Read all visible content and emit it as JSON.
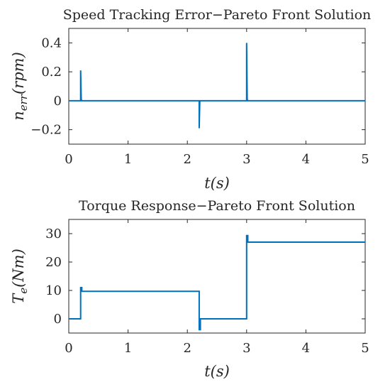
{
  "colors": {
    "series": "#0072BD",
    "axes": "#262626",
    "background": "#ffffff"
  },
  "chart_data": [
    {
      "type": "line",
      "title": "Speed Tracking Error−Pareto Front Solution",
      "xlabel": "t(s)",
      "ylabel": "n_err(rpm)",
      "ylabel_main": "n",
      "ylabel_sub": "err",
      "ylabel_rest": "(rpm)",
      "xlim": [
        0,
        5
      ],
      "ylim": [
        -0.3,
        0.5
      ],
      "xticks": [
        0,
        1,
        2,
        3,
        4,
        5
      ],
      "xtick_labels": [
        "0",
        "1",
        "2",
        "3",
        "4",
        "5"
      ],
      "yticks": [
        -0.2,
        0,
        0.2,
        0.4
      ],
      "ytick_labels": [
        "−0.2",
        "0",
        "0.2",
        "0.4"
      ],
      "grid": false,
      "series": [
        {
          "x": [
            0,
            0.2,
            0.2,
            0.21,
            0.22,
            0.23,
            2.2,
            2.2,
            2.21,
            2.22,
            3.0,
            3.0,
            3.01,
            3.02,
            5.0
          ],
          "y": [
            0,
            0,
            0.21,
            0.01,
            0,
            0,
            0,
            -0.19,
            -0.005,
            0,
            0,
            0.4,
            0.01,
            0,
            0
          ]
        }
      ]
    },
    {
      "type": "line",
      "title": "Torque Response−Pareto Front Solution",
      "xlabel": "t(s)",
      "ylabel": "T_e(Nm)",
      "ylabel_main": "T",
      "ylabel_sub": "e",
      "ylabel_rest": "(Nm)",
      "xlim": [
        0,
        5
      ],
      "ylim": [
        -5,
        35
      ],
      "xticks": [
        0,
        1,
        2,
        3,
        4,
        5
      ],
      "xtick_labels": [
        "0",
        "1",
        "2",
        "3",
        "4",
        "5"
      ],
      "yticks": [
        0,
        10,
        20,
        30
      ],
      "ytick_labels": [
        "0",
        "10",
        "20",
        "30"
      ],
      "grid": false,
      "series": [
        {
          "x": [
            0,
            0.2,
            0.2,
            0.22,
            0.22,
            0.24,
            2.2,
            2.2,
            2.22,
            2.22,
            3.0,
            3.0,
            3.02,
            3.02,
            5.0
          ],
          "y": [
            0,
            0,
            11,
            11,
            9.7,
            9.7,
            9.7,
            -3.8,
            -3.8,
            0,
            0,
            29.3,
            29.3,
            27,
            27
          ]
        }
      ]
    }
  ]
}
